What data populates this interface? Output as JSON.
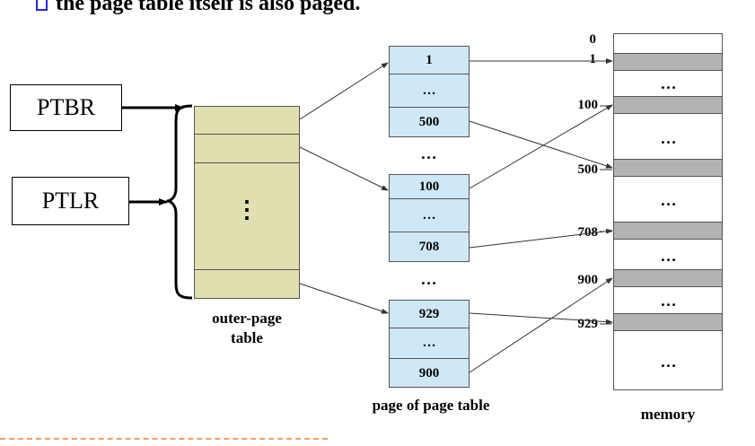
{
  "heading": "the page table itself is also paged.",
  "registers": {
    "ptbr": "PTBR",
    "ptlr": "PTLR"
  },
  "outer_table": {
    "dots": "⋮",
    "caption_line1": "outer-page",
    "caption_line2": "table"
  },
  "page_tables": [
    {
      "entries": [
        "1",
        "…",
        "500"
      ]
    },
    {
      "entries": [
        "100",
        "…",
        "708"
      ]
    },
    {
      "entries": [
        "929",
        "…",
        "900"
      ]
    }
  ],
  "between_dots": [
    "…",
    "…"
  ],
  "page_table_caption": "page of page table",
  "memory": {
    "labels": [
      "0",
      "1",
      "100",
      "500",
      "708",
      "900",
      "929"
    ],
    "ellipses": [
      "…",
      "…",
      "…",
      "…",
      "…",
      "…"
    ],
    "caption": "memory"
  }
}
